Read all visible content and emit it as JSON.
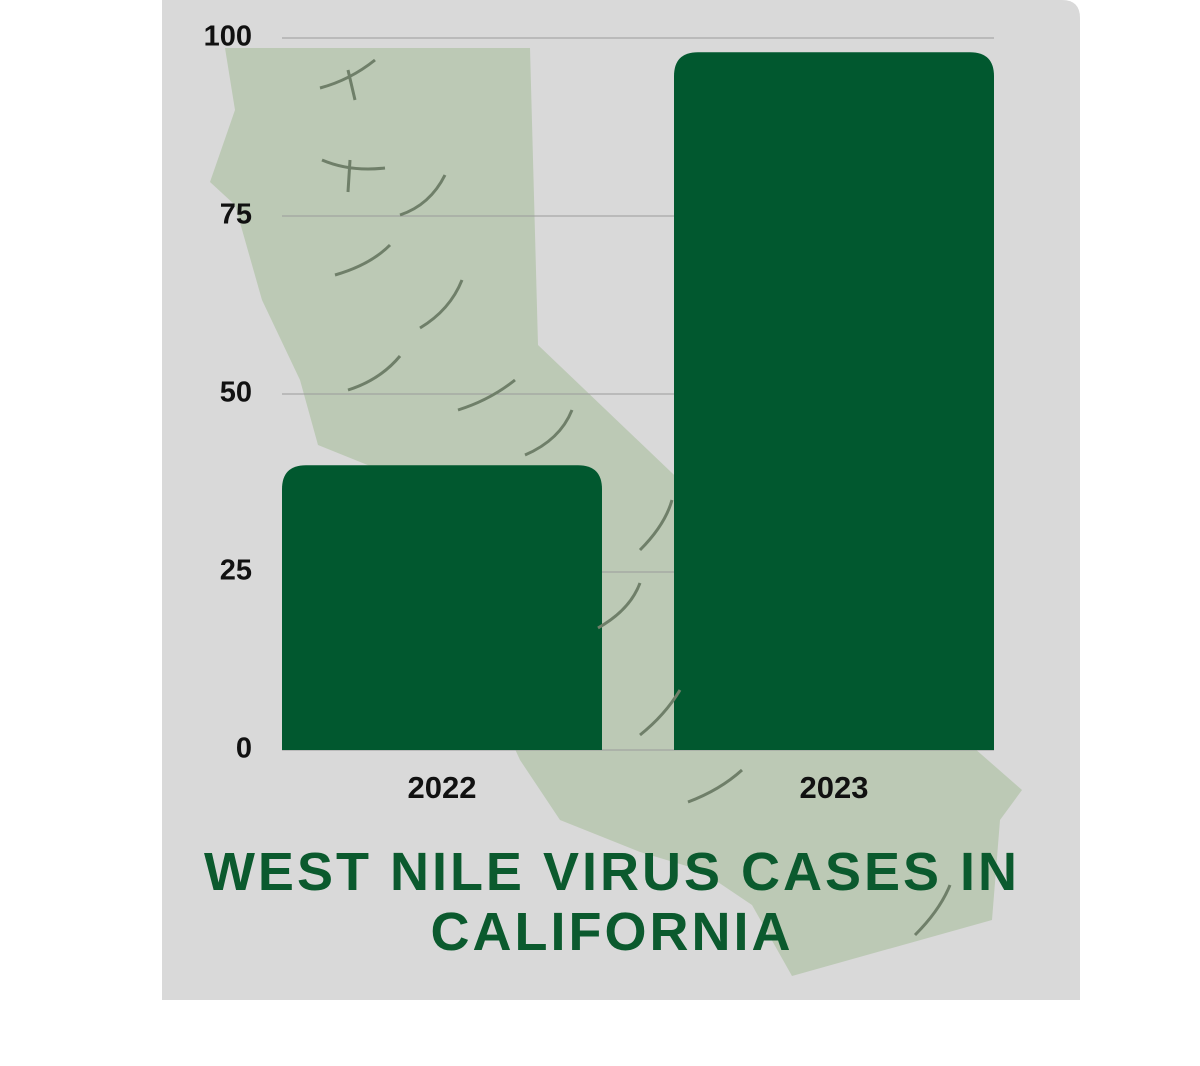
{
  "chart_data": {
    "type": "bar",
    "title": "WEST NILE VIRUS CASES IN CALIFORNIA",
    "categories": [
      "2022",
      "2023"
    ],
    "values": [
      40,
      98
    ],
    "color": "#01582f",
    "ylim": [
      0,
      100
    ],
    "yticks": [
      0,
      25,
      50,
      75,
      100
    ],
    "grid": true
  }
}
